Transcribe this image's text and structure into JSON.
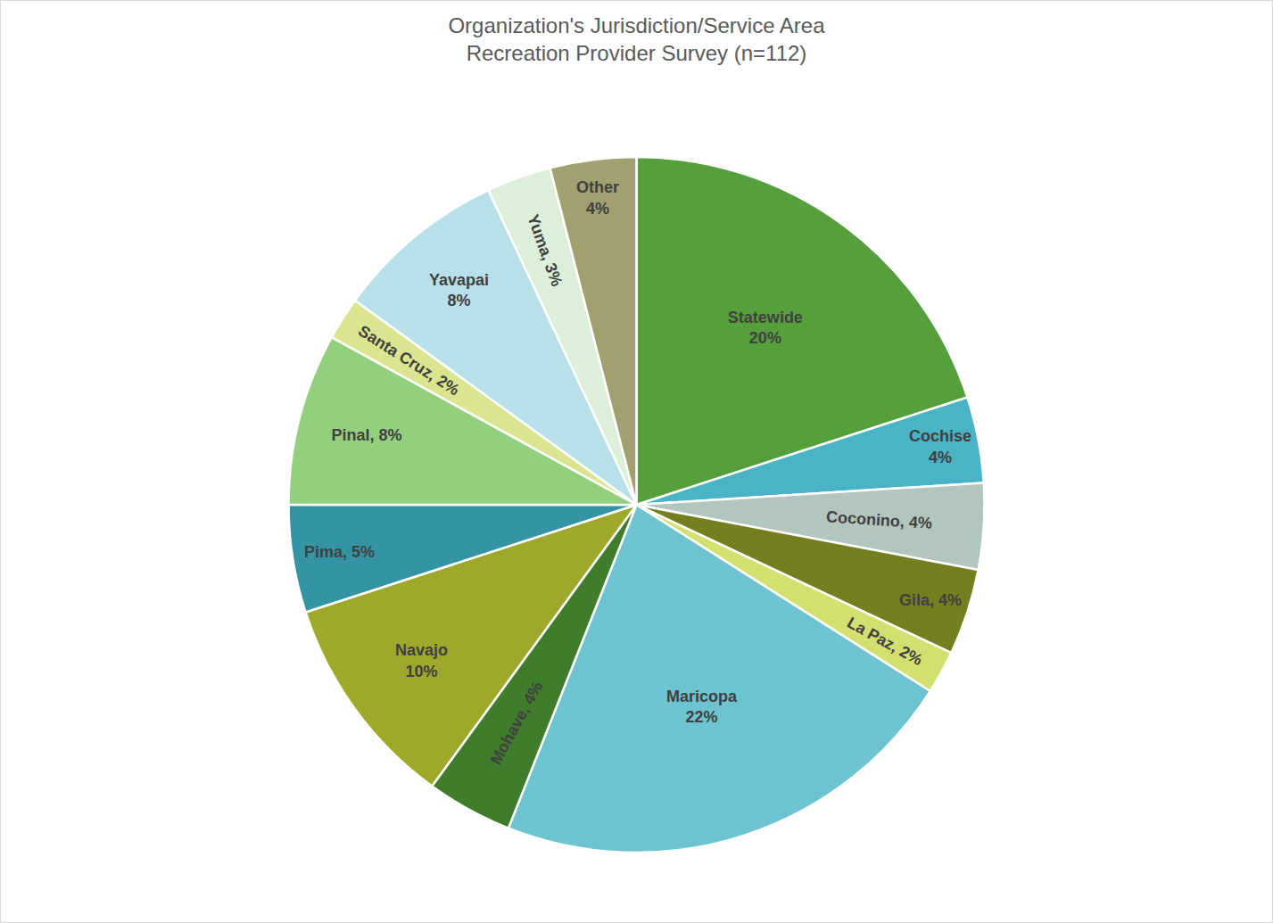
{
  "chart_data": {
    "type": "pie",
    "title": "Organization's Jurisdiction/Service Area",
    "subtitle": "Recreation Provider Survey (n=112)",
    "categories": [
      "Statewide",
      "Cochise",
      "Coconino",
      "Gila",
      "La Paz",
      "Maricopa",
      "Mohave",
      "Navajo",
      "Pima",
      "Pinal",
      "Santa Cruz",
      "Yavapai",
      "Yuma",
      "Other"
    ],
    "values": [
      20,
      4,
      4,
      4,
      2,
      22,
      4,
      10,
      5,
      8,
      2,
      8,
      3,
      4
    ],
    "value_labels": [
      "Statewide\n20%",
      "Cochise\n4%",
      "Coconino, 4%",
      "Gila, 4%",
      "La Paz, 2%",
      "Maricopa\n22%",
      "Mohave, 4%",
      "Navajo\n10%",
      "Pima, 5%",
      "Pinal, 8%",
      "Santa Cruz, 2%",
      "Yavapai\n8%",
      "Yuma, 3%",
      "Other\n4%"
    ],
    "colors": [
      "#55a03c",
      "#4ab3c6",
      "#b3c6bd",
      "#767f20",
      "#d3df6e",
      "#6ec3d0",
      "#3f7c2c",
      "#9ea82b",
      "#3494a4",
      "#93d07d",
      "#dbe48f",
      "#b8e0e8",
      "#dcf0d9",
      "#a0a070"
    ],
    "data_labels": true
  }
}
